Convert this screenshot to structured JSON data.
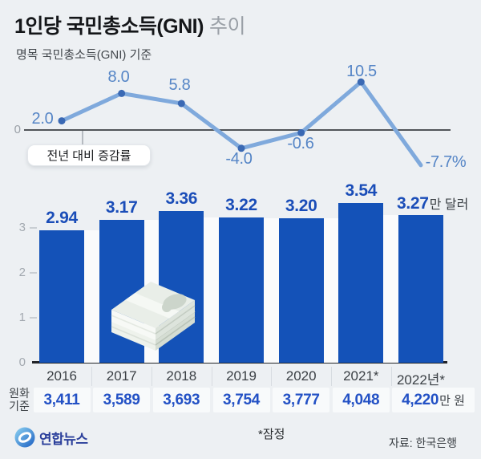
{
  "header": {
    "title_main": "1인당 국민총소득(GNI)",
    "title_sub": "추이",
    "subtitle": "명목 국민총소득(GNI) 기준"
  },
  "line_chart": {
    "zero_label": "0",
    "callout": "전년 대비 증감률"
  },
  "bar_chart": {
    "unit_suffix": "만 달러"
  },
  "won_row": {
    "label_line1": "원화",
    "label_line2": "기준",
    "unit_suffix": "만 원"
  },
  "footer": {
    "brand": "연합뉴스",
    "note": "*잠정",
    "source": "자료: 한국은행"
  },
  "colors": {
    "background": "#edf0f3",
    "bar_blue": "#1452b8",
    "line_blue": "#7fa9dc",
    "dot_blue": "#3a69b4",
    "line_label_blue": "#5585c6",
    "won_value_blue": "#2351c5",
    "zero_line": "#515559",
    "baseline": "#222428",
    "brand_blue": "#2b3f9b"
  },
  "chart_data": [
    {
      "type": "line",
      "name": "전년 대비 증감률",
      "unit": "%",
      "categories": [
        "2016",
        "2017",
        "2018",
        "2019",
        "2020",
        "2021*",
        "2022년*"
      ],
      "values": [
        2.0,
        8.0,
        5.8,
        -4.0,
        -0.6,
        10.5,
        -7.7
      ],
      "labels": [
        "2.0",
        "8.0",
        "5.8",
        "-4.0",
        "-0.6",
        "10.5",
        "-7.7%"
      ],
      "baseline_value": 0,
      "legend_position": "callout-left"
    },
    {
      "type": "bar",
      "name": "1인당 국민총소득(GNI)",
      "unit": "만 달러",
      "categories": [
        "2016",
        "2017",
        "2018",
        "2019",
        "2020",
        "2021*",
        "2022년*"
      ],
      "values": [
        2.94,
        3.17,
        3.36,
        3.22,
        3.2,
        3.54,
        3.27
      ],
      "labels": [
        "2.94",
        "3.17",
        "3.36",
        "3.22",
        "3.20",
        "3.54",
        "3.27"
      ],
      "axis_ticks": [
        "0",
        "1",
        "2",
        "3"
      ],
      "ylim": [
        0,
        3.6
      ],
      "grid": false
    },
    {
      "type": "table",
      "name": "원화 기준",
      "unit": "만 원",
      "categories": [
        "2016",
        "2017",
        "2018",
        "2019",
        "2020",
        "2021*",
        "2022년*"
      ],
      "values": [
        3411,
        3589,
        3693,
        3754,
        3777,
        4048,
        4220
      ],
      "labels": [
        "3,411",
        "3,589",
        "3,693",
        "3,754",
        "3,777",
        "4,048",
        "4,220"
      ]
    }
  ]
}
